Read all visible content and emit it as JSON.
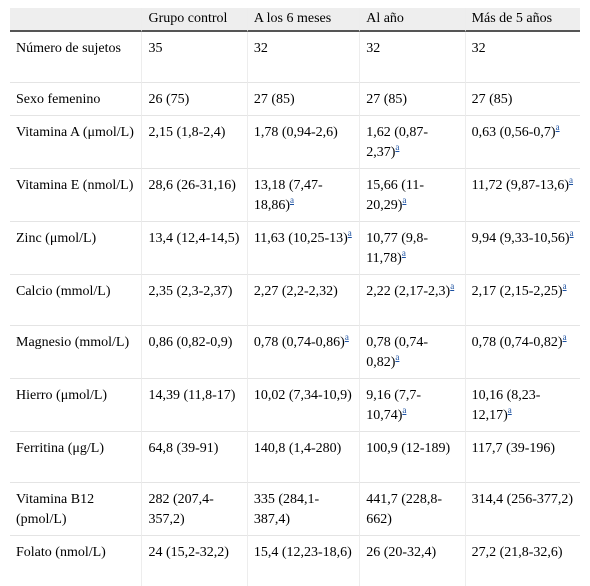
{
  "headers": [
    "",
    "Grupo control",
    "A los 6 meses",
    "Al año",
    "Más de 5 años"
  ],
  "footnote_mark": "a",
  "rows": [
    {
      "label": "Número de sujetos",
      "cells": [
        {
          "v": "35",
          "a": false
        },
        {
          "v": "32",
          "a": false
        },
        {
          "v": "32",
          "a": false
        },
        {
          "v": "32",
          "a": false
        }
      ]
    },
    {
      "label": "Sexo femenino",
      "cells": [
        {
          "v": "26 (75)",
          "a": false
        },
        {
          "v": "27 (85)",
          "a": false
        },
        {
          "v": "27 (85)",
          "a": false
        },
        {
          "v": "27 (85)",
          "a": false
        }
      ]
    },
    {
      "label": "Vitamina A (μmol/L)",
      "cells": [
        {
          "v": "2,15 (1,8-2,4)",
          "a": false
        },
        {
          "v": "1,78 (0,94-2,6)",
          "a": false
        },
        {
          "v": "1,62 (0,87-2,37)",
          "a": true
        },
        {
          "v": "0,63 (0,56-0,7)",
          "a": true
        }
      ]
    },
    {
      "label": "Vitamina E (nmol/L)",
      "cells": [
        {
          "v": "28,6 (26-31,16)",
          "a": false
        },
        {
          "v": "13,18 (7,47-18,86)",
          "a": true
        },
        {
          "v": "15,66 (11-20,29)",
          "a": true
        },
        {
          "v": "11,72 (9,87-13,6)",
          "a": true
        }
      ]
    },
    {
      "label": "Zinc (μmol/L)",
      "cells": [
        {
          "v": "13,4 (12,4-14,5)",
          "a": false
        },
        {
          "v": "11,63 (10,25-13)",
          "a": true
        },
        {
          "v": "10,77 (9,8-11,78)",
          "a": true
        },
        {
          "v": "9,94 (9,33-10,56)",
          "a": true
        }
      ]
    },
    {
      "label": "Calcio (mmol/L)",
      "cells": [
        {
          "v": "2,35 (2,3-2,37)",
          "a": false
        },
        {
          "v": "2,27 (2,2-2,32)",
          "a": false
        },
        {
          "v": "2,22 (2,17-2,3)",
          "a": true
        },
        {
          "v": "2,17 (2,15-2,25)",
          "a": true
        }
      ]
    },
    {
      "label": "Magnesio (mmol/L)",
      "cells": [
        {
          "v": "0,86 (0,82-0,9)",
          "a": false
        },
        {
          "v": "0,78 (0,74-0,86)",
          "a": true
        },
        {
          "v": "0,78 (0,74-0,82)",
          "a": true
        },
        {
          "v": "0,78 (0,74-0,82)",
          "a": true
        }
      ]
    },
    {
      "label": "Hierro (μmol/L)",
      "cells": [
        {
          "v": "14,39 (11,8-17)",
          "a": false
        },
        {
          "v": "10,02 (7,34-10,9)",
          "a": false
        },
        {
          "v": "9,16 (7,7-10,74)",
          "a": true
        },
        {
          "v": "10,16 (8,23-12,17)",
          "a": true
        }
      ]
    },
    {
      "label": "Ferritina (μg/L)",
      "cells": [
        {
          "v": "64,8 (39-91)",
          "a": false
        },
        {
          "v": "140,8 (1,4-280)",
          "a": false
        },
        {
          "v": "100,9 (12-189)",
          "a": false
        },
        {
          "v": "117,7 (39-196)",
          "a": false
        }
      ]
    },
    {
      "label": "Vitamina B12 (pmol/L)",
      "cells": [
        {
          "v": "282 (207,4-357,2)",
          "a": false
        },
        {
          "v": "335 (284,1-387,4)",
          "a": false
        },
        {
          "v": "441,7 (228,8-662)",
          "a": false
        },
        {
          "v": "314,4 (256-377,2)",
          "a": false
        }
      ]
    },
    {
      "label": "Folato (nmol/L)",
      "cells": [
        {
          "v": "24 (15,2-32,2)",
          "a": false
        },
        {
          "v": "15,4 (12,23-18,6)",
          "a": false
        },
        {
          "v": "26 (20-32,4)",
          "a": false
        },
        {
          "v": "27,2 (21,8-32,6)",
          "a": false
        }
      ]
    }
  ]
}
